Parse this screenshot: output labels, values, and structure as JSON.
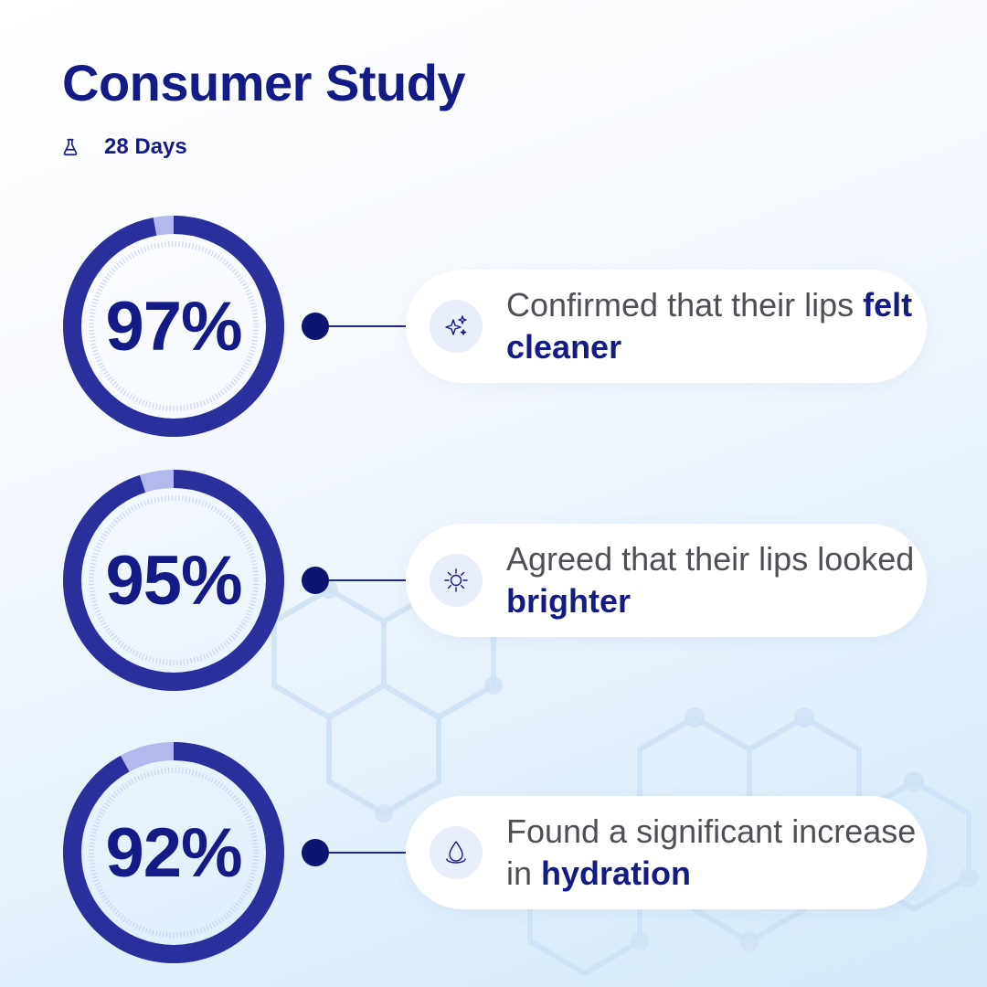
{
  "header": {
    "title": "Consumer Study",
    "duration": "28 Days",
    "icon": "flask-icon"
  },
  "colors": {
    "primary": "#141b86",
    "ring": "#2a2f9c",
    "ring_remainder": "#b3b8ee",
    "dot": "#0d1570",
    "text": "#4f4f57",
    "icon_bg": "#e9eefb"
  },
  "stats": [
    {
      "percent_label": "97%",
      "value": 97,
      "text_before": "Confirmed that their lips ",
      "highlight": "felt cleaner",
      "icon": "sparkle-icon"
    },
    {
      "percent_label": "95%",
      "value": 95,
      "text_before": "Agreed that their lips looked ",
      "highlight": "brighter",
      "icon": "sun-icon"
    },
    {
      "percent_label": "92%",
      "value": 92,
      "text_before": "Found a significant increase in ",
      "highlight": "hydration",
      "icon": "water-drop-icon"
    }
  ]
}
